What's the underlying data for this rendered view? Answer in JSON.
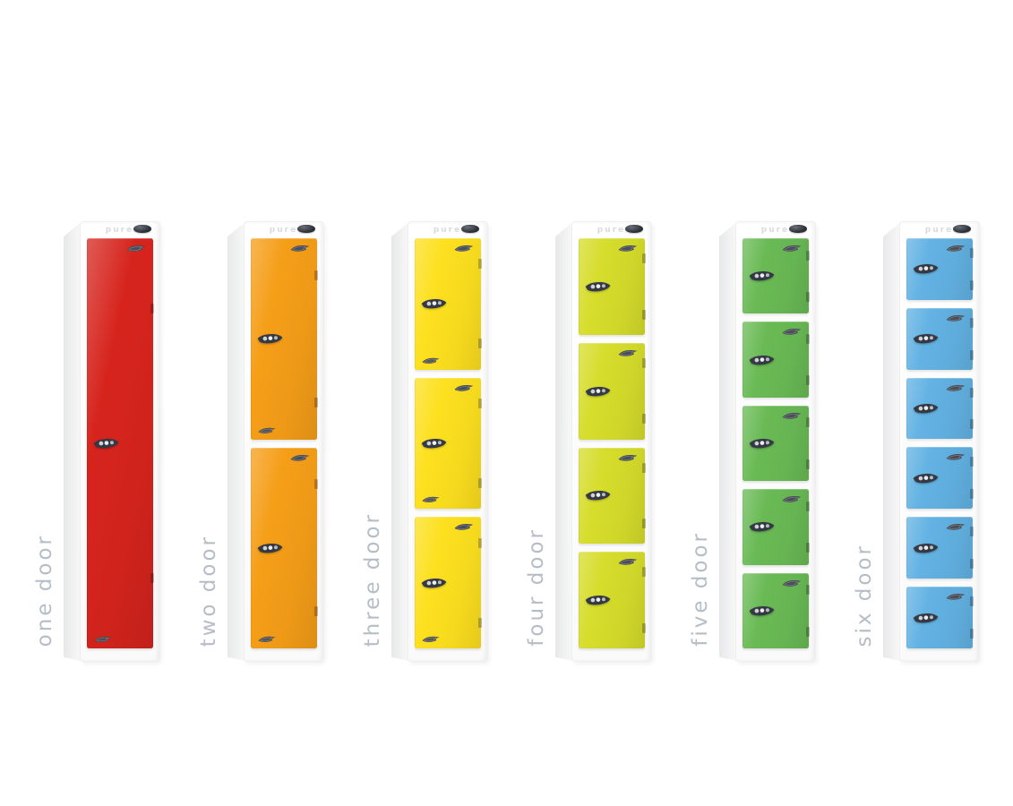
{
  "montage": {
    "brand": "pure",
    "label_color": "#b5bdc6",
    "lockers": [
      {
        "id": "one-door",
        "label": "one door",
        "doors": 1,
        "color": "#d6241d"
      },
      {
        "id": "two-door",
        "label": "two door",
        "doors": 2,
        "color": "#f59e18"
      },
      {
        "id": "three-door",
        "label": "three door",
        "doors": 3,
        "color": "#fde01f"
      },
      {
        "id": "four-door",
        "label": "four door",
        "doors": 4,
        "color": "#d6dd2b"
      },
      {
        "id": "five-door",
        "label": "five door",
        "doors": 5,
        "color": "#69ba55"
      },
      {
        "id": "six-door",
        "label": "six door",
        "doors": 6,
        "color": "#62b2e3"
      }
    ],
    "icons": {
      "handle": "door-handle-icon",
      "lock": "combination-lock-icon",
      "latch": "top-latch-icon",
      "lower_handle": "door-lower-handle-icon"
    }
  }
}
